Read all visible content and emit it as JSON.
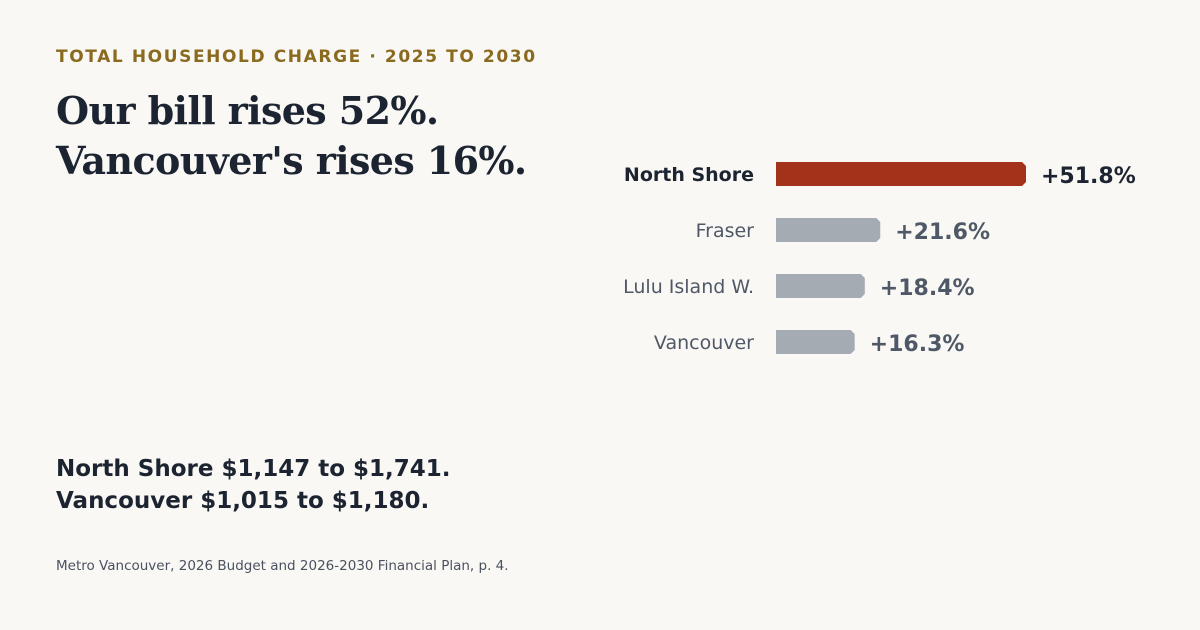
{
  "eyebrow": "TOTAL HOUSEHOLD CHARGE · 2025 TO 2030",
  "headline": {
    "line1": "Our bill rises 52%.",
    "line2": "Vancouver's rises 16%."
  },
  "summary": {
    "line1": "North Shore $1,147 to $1,741.",
    "line2": "Vancouver $1,015 to $1,180."
  },
  "source": "Metro Vancouver, 2026 Budget and 2026-2030 Financial Plan, p. 4.",
  "colors": {
    "highlight": "#a3321b",
    "muted_bar": "#a5abb2",
    "highlight_text": "#1c2331",
    "muted_text": "#4f5866",
    "eyebrow": "#8a6a1e",
    "background": "#f9f8f4"
  },
  "chart_data": {
    "type": "bar",
    "orientation": "horizontal",
    "categories": [
      "North Shore",
      "Fraser",
      "Lulu Island W.",
      "Vancouver"
    ],
    "values": [
      51.8,
      21.6,
      18.4,
      16.3
    ],
    "value_labels": [
      "+51.8%",
      "+21.6%",
      "+18.4%",
      "+16.3%"
    ],
    "highlight_index": 0,
    "title": "",
    "xlabel": "",
    "ylabel": "",
    "grid": false,
    "legend": "none"
  }
}
